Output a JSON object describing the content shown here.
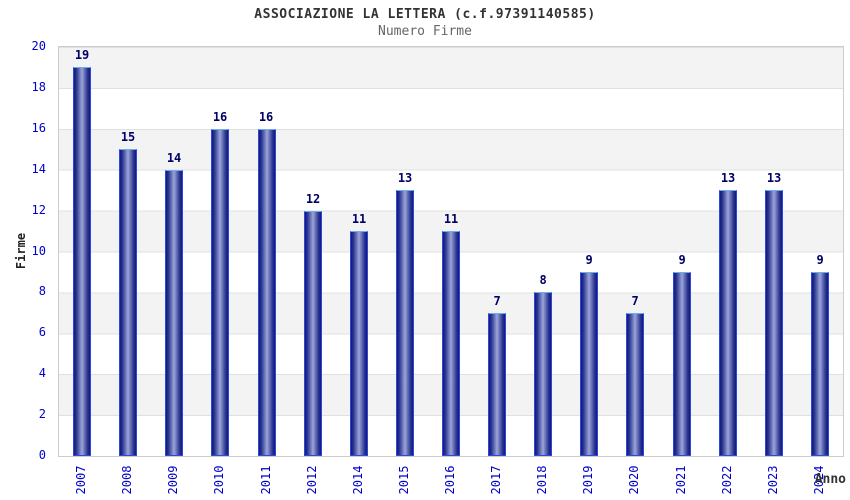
{
  "header": {
    "title": "ASSOCIAZIONE LA LETTERA (c.f.97391140585)",
    "subtitle": "Numero Firme"
  },
  "chart_data": {
    "type": "bar",
    "title": "ASSOCIAZIONE LA LETTERA (c.f.97391140585)",
    "subtitle": "Numero Firme",
    "xlabel": "Anno",
    "ylabel": "Firme",
    "categories": [
      "2007",
      "2008",
      "2009",
      "2010",
      "2011",
      "2012",
      "2014",
      "2015",
      "2016",
      "2017",
      "2018",
      "2019",
      "2020",
      "2021",
      "2022",
      "2023",
      "2024"
    ],
    "values": [
      19,
      15,
      14,
      16,
      16,
      12,
      11,
      13,
      11,
      7,
      8,
      9,
      7,
      9,
      13,
      13,
      9
    ],
    "ylim": [
      0,
      20
    ],
    "ytick_step": 2,
    "grid": "horizontal-bands-every-2-units",
    "legend": "none",
    "colors": {
      "bar_dark": "#121a70",
      "bar_mid": "#2a3490",
      "bar_light": "#9ba5d8",
      "bar_border": "#2b47e8",
      "bar_top_highlight": "#6ab0ee",
      "tick_label": "#0000cc",
      "value_label": "#000066",
      "band_gray": "#f3f3f3",
      "gridline": "#e0e0e0",
      "plot_border": "#cccccc",
      "title_color": "#333333",
      "subtitle_color": "#666666",
      "background": "#ffffff"
    }
  }
}
